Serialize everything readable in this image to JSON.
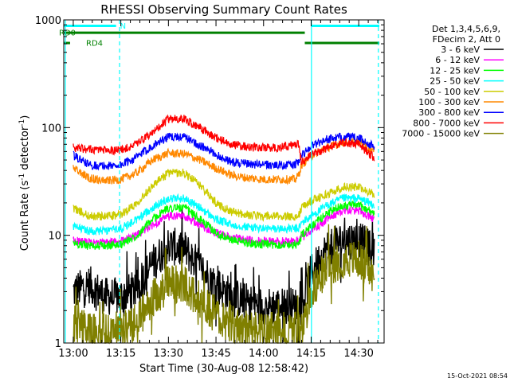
{
  "chart_data": {
    "type": "line",
    "title": "RHESSI Observing Summary Count Rates",
    "xlabel": "Start Time (30-Aug-08 12:58:42)",
    "ylabel": "Count Rate (s",
    "ylabel_sup1": "-1",
    "ylabel_mid": " detector",
    "ylabel_sup2": "-1",
    "ylabel_end": ")",
    "yscale": "log",
    "xlim_min": [
      -3,
      98
    ],
    "ylim": [
      1,
      1000
    ],
    "xticks": [
      {
        "min": 0,
        "label": "13:00"
      },
      {
        "min": 15,
        "label": "13:15"
      },
      {
        "min": 30,
        "label": "13:30"
      },
      {
        "min": 45,
        "label": "13:45"
      },
      {
        "min": 60,
        "label": "14:00"
      },
      {
        "min": 75,
        "label": "14:15"
      },
      {
        "min": 90,
        "label": "14:30"
      }
    ],
    "yticks": [
      {
        "value": 1,
        "label": "1"
      },
      {
        "value": 10,
        "label": "10"
      },
      {
        "value": 100,
        "label": "100"
      },
      {
        "value": 1000,
        "label": "1000"
      }
    ],
    "legend_header": [
      "Det 1,3,4,5,6,9,",
      "FDecim 2, Att 0"
    ],
    "legend_position": "right",
    "series": [
      {
        "name": "3 - 6 keV",
        "color": "#000000",
        "x": [
          0,
          5,
          10,
          15,
          20,
          25,
          30,
          35,
          40,
          45,
          50,
          55,
          60,
          65,
          70,
          71,
          72,
          75,
          80,
          85,
          90,
          95
        ],
        "y": [
          3,
          3.5,
          2.7,
          2.7,
          3.2,
          5.5,
          8,
          7.5,
          5,
          3.5,
          2.7,
          2.4,
          2.2,
          2.2,
          2.2,
          2.2,
          2.2,
          4.5,
          7.5,
          9,
          9,
          7
        ]
      },
      {
        "name": "6 - 12 keV",
        "color": "#ff00ff",
        "x": [
          0,
          5,
          10,
          15,
          20,
          25,
          30,
          35,
          40,
          45,
          50,
          55,
          60,
          65,
          70,
          71,
          72,
          75,
          80,
          85,
          90,
          95
        ],
        "y": [
          9,
          8.5,
          8.5,
          8.8,
          10,
          12.5,
          15,
          15,
          12.5,
          10.5,
          9.5,
          9,
          8.8,
          8.8,
          8.8,
          8.8,
          9.5,
          11,
          14,
          17,
          17,
          14
        ]
      },
      {
        "name": "12 - 25 keV",
        "color": "#00ff00",
        "x": [
          0,
          5,
          10,
          15,
          20,
          25,
          30,
          35,
          40,
          45,
          50,
          55,
          60,
          65,
          70,
          71,
          72,
          75,
          80,
          85,
          90,
          95
        ],
        "y": [
          8.5,
          8,
          8,
          8.2,
          10,
          14,
          18,
          18,
          14,
          10.5,
          9,
          8.5,
          8.2,
          8.2,
          8.2,
          8.2,
          10,
          12,
          16,
          19,
          19,
          16
        ]
      },
      {
        "name": "25 - 50 keV",
        "color": "#00ffff",
        "x": [
          0,
          5,
          10,
          15,
          20,
          25,
          30,
          35,
          40,
          45,
          50,
          55,
          60,
          65,
          70,
          71,
          72,
          75,
          80,
          85,
          90,
          95
        ],
        "y": [
          12,
          11,
          11,
          11.5,
          14,
          18,
          22,
          22,
          18,
          14,
          12.5,
          12,
          11.5,
          11.5,
          11.5,
          11.5,
          13,
          15,
          19,
          22,
          22,
          19
        ]
      },
      {
        "name": "50 - 100 keV",
        "color": "#cccc00",
        "x": [
          0,
          5,
          10,
          15,
          20,
          25,
          30,
          35,
          40,
          45,
          50,
          55,
          60,
          65,
          70,
          71,
          72,
          75,
          80,
          85,
          90,
          95
        ],
        "y": [
          18,
          15,
          15,
          15.5,
          20,
          29,
          38,
          38,
          29,
          20,
          16.5,
          15.5,
          15,
          15,
          15,
          15,
          18,
          21,
          24,
          28,
          28,
          24
        ]
      },
      {
        "name": "100 - 300 keV",
        "color": "#ff8800",
        "x": [
          0,
          5,
          10,
          15,
          20,
          25,
          30,
          35,
          40,
          45,
          50,
          55,
          60,
          65,
          70,
          71,
          72,
          75,
          80,
          85,
          90,
          95
        ],
        "y": [
          42,
          34,
          32,
          33,
          38,
          50,
          58,
          57,
          50,
          42,
          36,
          34,
          33,
          33,
          33,
          36,
          45,
          55,
          65,
          73,
          73,
          60
        ]
      },
      {
        "name": "300 - 800 keV",
        "color": "#0000ff",
        "x": [
          0,
          5,
          10,
          15,
          20,
          25,
          30,
          35,
          40,
          45,
          50,
          55,
          60,
          65,
          70,
          71,
          72,
          75,
          80,
          85,
          90,
          95
        ],
        "y": [
          55,
          45,
          44,
          45,
          53,
          68,
          82,
          82,
          68,
          56,
          48,
          46,
          45,
          45,
          45,
          48,
          55,
          68,
          78,
          82,
          80,
          66
        ]
      },
      {
        "name": "800 - 7000 keV",
        "color": "#ff0000",
        "x": [
          0,
          5,
          10,
          15,
          20,
          25,
          30,
          35,
          40,
          45,
          50,
          55,
          60,
          65,
          70,
          71,
          72,
          75,
          80,
          85,
          90,
          95
        ],
        "y": [
          65,
          63,
          62,
          62,
          70,
          90,
          120,
          120,
          100,
          80,
          70,
          66,
          65,
          65,
          70,
          70,
          48,
          55,
          65,
          72,
          70,
          52
        ]
      },
      {
        "name": "7000 - 15000 keV",
        "color": "#808000",
        "x": [
          0,
          5,
          10,
          15,
          20,
          25,
          30,
          35,
          40,
          45,
          50,
          55,
          60,
          65,
          70,
          71,
          72,
          75,
          80,
          85,
          90,
          95
        ],
        "y": [
          1.5,
          1.3,
          1.3,
          1.3,
          1.6,
          2.5,
          3.5,
          3.5,
          2.5,
          1.8,
          1.5,
          1.3,
          1.3,
          1.3,
          1.3,
          1.3,
          1.3,
          3,
          5,
          6,
          6,
          4
        ]
      }
    ],
    "flags": [
      {
        "label": "N",
        "color": "#00ffff",
        "y": 880,
        "spans": [
          [
            -3,
            13.5
          ],
          [
            75,
            96.5
          ]
        ]
      },
      {
        "label": "RD0",
        "color": "#008000",
        "y": 760,
        "spans": [
          [
            -3,
            73
          ]
        ]
      },
      {
        "label": "RD4",
        "color": "#008000",
        "y": 610,
        "spans": [
          [
            -3,
            -1
          ],
          [
            73,
            96.5
          ]
        ]
      }
    ],
    "vlines": [
      {
        "min": -2.5,
        "color": "#00ffff",
        "style": "solid"
      },
      {
        "min": 14.6,
        "color": "#00ffff",
        "style": "dashed"
      },
      {
        "min": 75.1,
        "color": "#00ffff",
        "style": "solid"
      },
      {
        "min": 96.2,
        "color": "#00ffff",
        "style": "dashed"
      }
    ]
  },
  "timestamp": "15-Oct-2021 08:54"
}
